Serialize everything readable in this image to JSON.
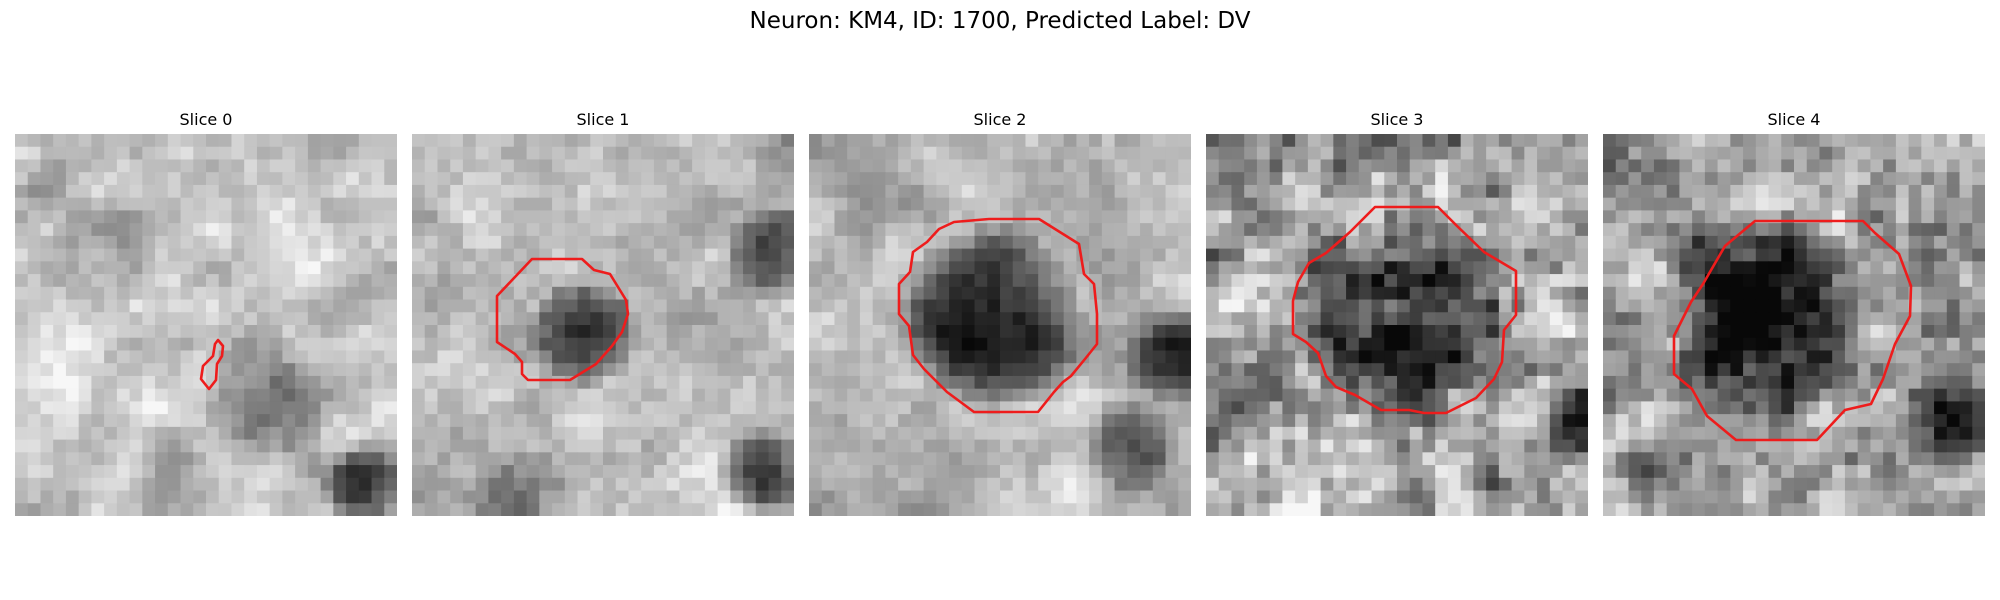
{
  "figure": {
    "title": "Neuron: KM4, ID: 1700, Predicted Label: DV",
    "contour_color": "#ee1c1c"
  },
  "slices": [
    {
      "title": "Slice 0"
    },
    {
      "title": "Slice 1"
    },
    {
      "title": "Slice 2"
    },
    {
      "title": "Slice 3"
    },
    {
      "title": "Slice 4"
    }
  ]
}
